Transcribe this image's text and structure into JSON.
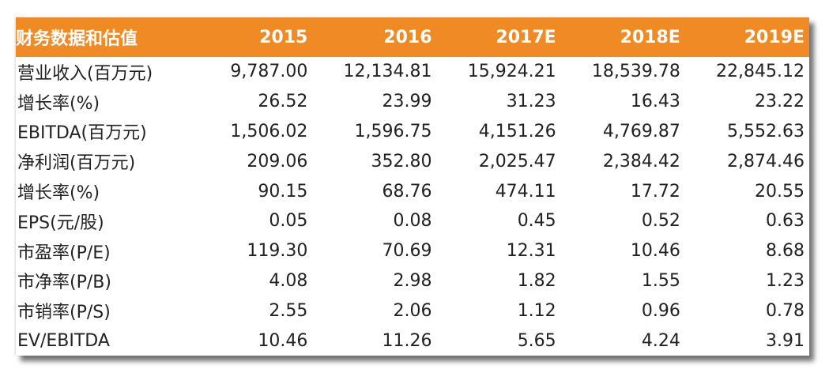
{
  "table": {
    "header": [
      "财务数据和估值",
      "2015",
      "2016",
      "2017E",
      "2018E",
      "2019E"
    ],
    "rows": [
      {
        "label": "营业收入(百万元)",
        "values": [
          "9,787.00",
          "12,134.81",
          "15,924.21",
          "18,539.78",
          "22,845.12"
        ]
      },
      {
        "label": "增长率(%)",
        "values": [
          "26.52",
          "23.99",
          "31.23",
          "16.43",
          "23.22"
        ]
      },
      {
        "label": "EBITDA(百万元)",
        "values": [
          "1,506.02",
          "1,596.75",
          "4,151.26",
          "4,769.87",
          "5,552.63"
        ]
      },
      {
        "label": "净利润(百万元)",
        "values": [
          "209.06",
          "352.80",
          "2,025.47",
          "2,384.42",
          "2,874.46"
        ]
      },
      {
        "label": "增长率(%)",
        "values": [
          "90.15",
          "68.76",
          "474.11",
          "17.72",
          "20.55"
        ]
      },
      {
        "label": "EPS(元/股)",
        "values": [
          "0.05",
          "0.08",
          "0.45",
          "0.52",
          "0.63"
        ]
      },
      {
        "label": "市盈率(P/E)",
        "values": [
          "119.30",
          "70.69",
          "12.31",
          "10.46",
          "8.68"
        ]
      },
      {
        "label": "市净率(P/B)",
        "values": [
          "4.08",
          "2.98",
          "1.82",
          "1.55",
          "1.23"
        ]
      },
      {
        "label": "市销率(P/S)",
        "values": [
          "2.55",
          "2.06",
          "1.12",
          "0.96",
          "0.78"
        ]
      },
      {
        "label": "EV/EBITDA",
        "values": [
          "10.46",
          "11.26",
          "5.65",
          "4.24",
          "3.91"
        ]
      }
    ]
  },
  "colors": {
    "header_bg": "#f08a24",
    "header_text": "#ffffff",
    "body_text": "#222222"
  }
}
